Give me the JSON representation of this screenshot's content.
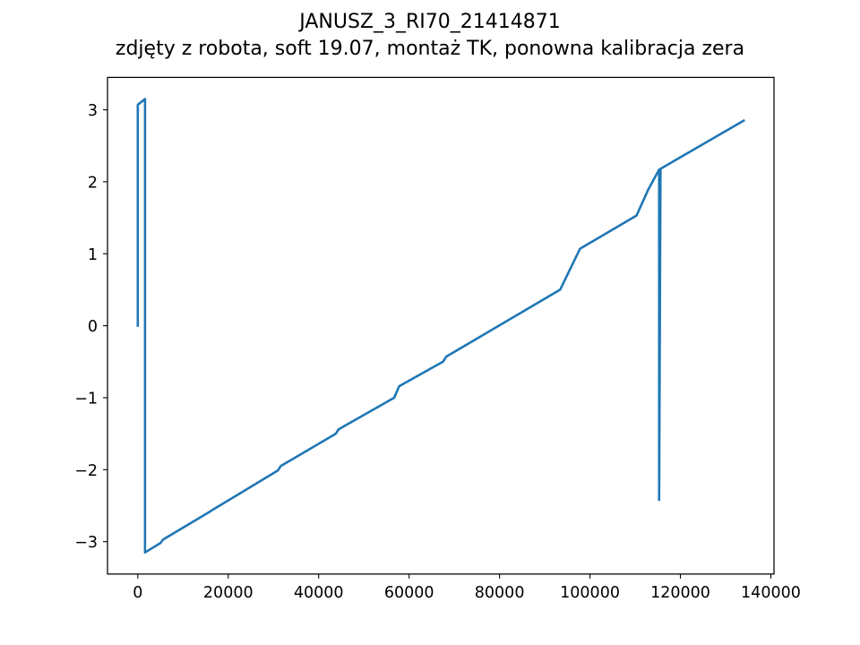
{
  "chart_data": {
    "type": "line",
    "title": "JANUSZ_3_RI70_21414871",
    "subtitle": "zdjęty z robota, soft 19.07, montaż TK, ponowna kalibracja zera",
    "xlabel": "",
    "ylabel": "",
    "xlim": [
      -6700,
      140700
    ],
    "ylim": [
      -3.45,
      3.45
    ],
    "xticks": [
      0,
      20000,
      40000,
      60000,
      80000,
      100000,
      120000,
      140000
    ],
    "yticks": [
      -3,
      -2,
      -1,
      0,
      1,
      2,
      3
    ],
    "xtick_labels": [
      "0",
      "20000",
      "40000",
      "60000",
      "80000",
      "100000",
      "120000",
      "140000"
    ],
    "ytick_labels": [
      "−3",
      "−2",
      "−1",
      "0",
      "1",
      "2",
      "3"
    ],
    "grid": false,
    "series": [
      {
        "color": "#1f77b4",
        "x": [
          0,
          0,
          1600,
          1600,
          5000,
          5600,
          15500,
          16500,
          31000,
          31600,
          43800,
          44400,
          56700,
          57800,
          67500,
          68200,
          93400,
          97800,
          110300,
          112800,
          115300,
          115300,
          115600,
          134000
        ],
        "y": [
          0.0,
          3.07,
          3.15,
          -3.15,
          -3.02,
          -2.97,
          -2.6,
          -2.56,
          -2.01,
          -1.95,
          -1.5,
          -1.44,
          -1.0,
          -0.84,
          -0.5,
          -0.43,
          0.5,
          1.07,
          1.53,
          1.88,
          2.17,
          -2.42,
          2.18,
          2.85
        ]
      }
    ]
  }
}
